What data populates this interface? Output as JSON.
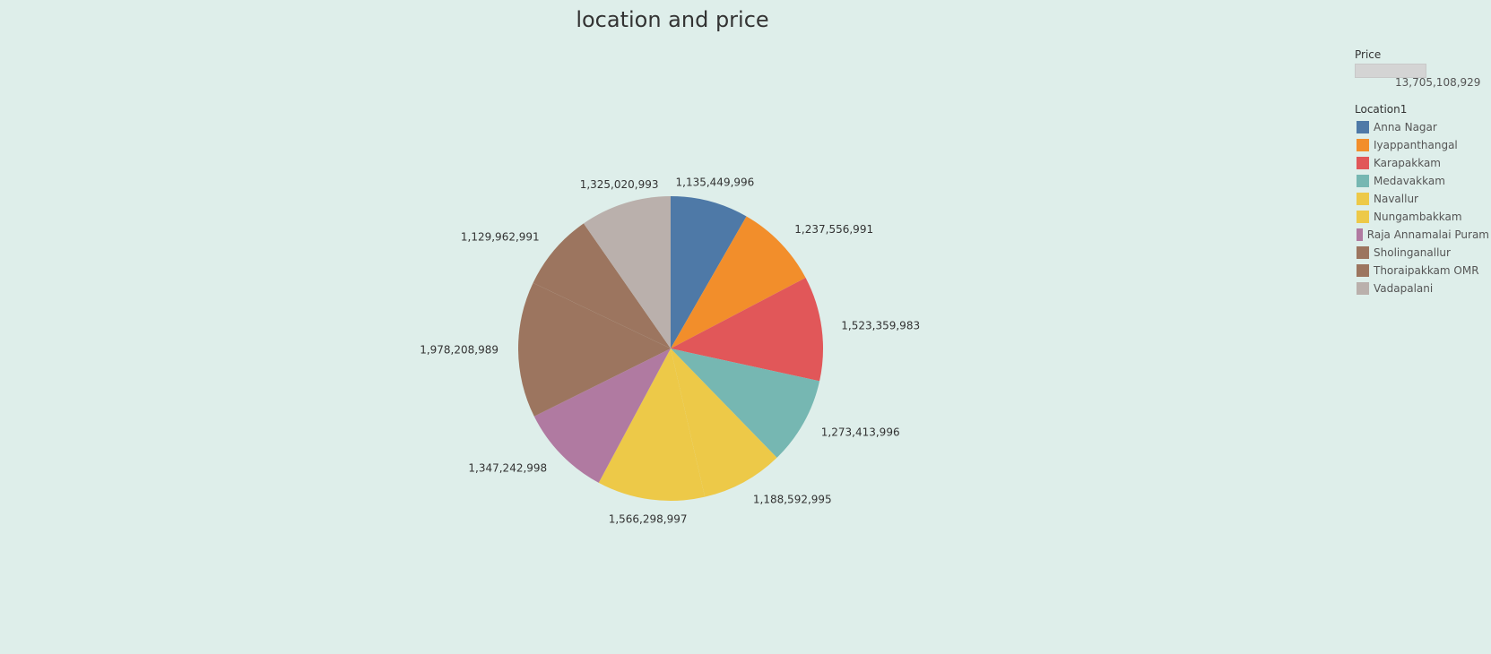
{
  "chart_data": {
    "type": "pie",
    "title": "location and price",
    "slices": [
      {
        "label": "Anna Nagar",
        "value": 1135449996,
        "value_label": "1,135,449,996",
        "color": "#4e79a7"
      },
      {
        "label": "Iyappanthangal",
        "value": 1237556991,
        "value_label": "1,237,556,991",
        "color": "#f28e2b"
      },
      {
        "label": "Karapakkam",
        "value": 1523359983,
        "value_label": "1,523,359,983",
        "color": "#e15759"
      },
      {
        "label": "Medavakkam",
        "value": 1273413996,
        "value_label": "1,273,413,996",
        "color": "#76b7b2"
      },
      {
        "label": "Navallur",
        "value": 1188592995,
        "value_label": "1,188,592,995",
        "color": "#edc948"
      },
      {
        "label": "Nungambakkam",
        "value": 1566298997,
        "value_label": "1,566,298,997",
        "color": "#edc948"
      },
      {
        "label": "Raja Annamalai Puram",
        "value": 1347242998,
        "value_label": "1,347,242,998",
        "color": "#b07aa1"
      },
      {
        "label": "Sholinganallur",
        "value": 1978208989,
        "value_label": "1,978,208,989",
        "color": "#9c755f"
      },
      {
        "label": "Thoraipakkam OMR",
        "value": 1129962991,
        "value_label": "1,129,962,991",
        "color": "#9c755f"
      },
      {
        "label": "Vadapalani",
        "value": 1325020993,
        "value_label": "1,325,020,993",
        "color": "#bab0ac"
      }
    ]
  },
  "legend": {
    "size_title": "Price",
    "size_range_label": "13,705,108,929",
    "color_title": "Location1"
  }
}
